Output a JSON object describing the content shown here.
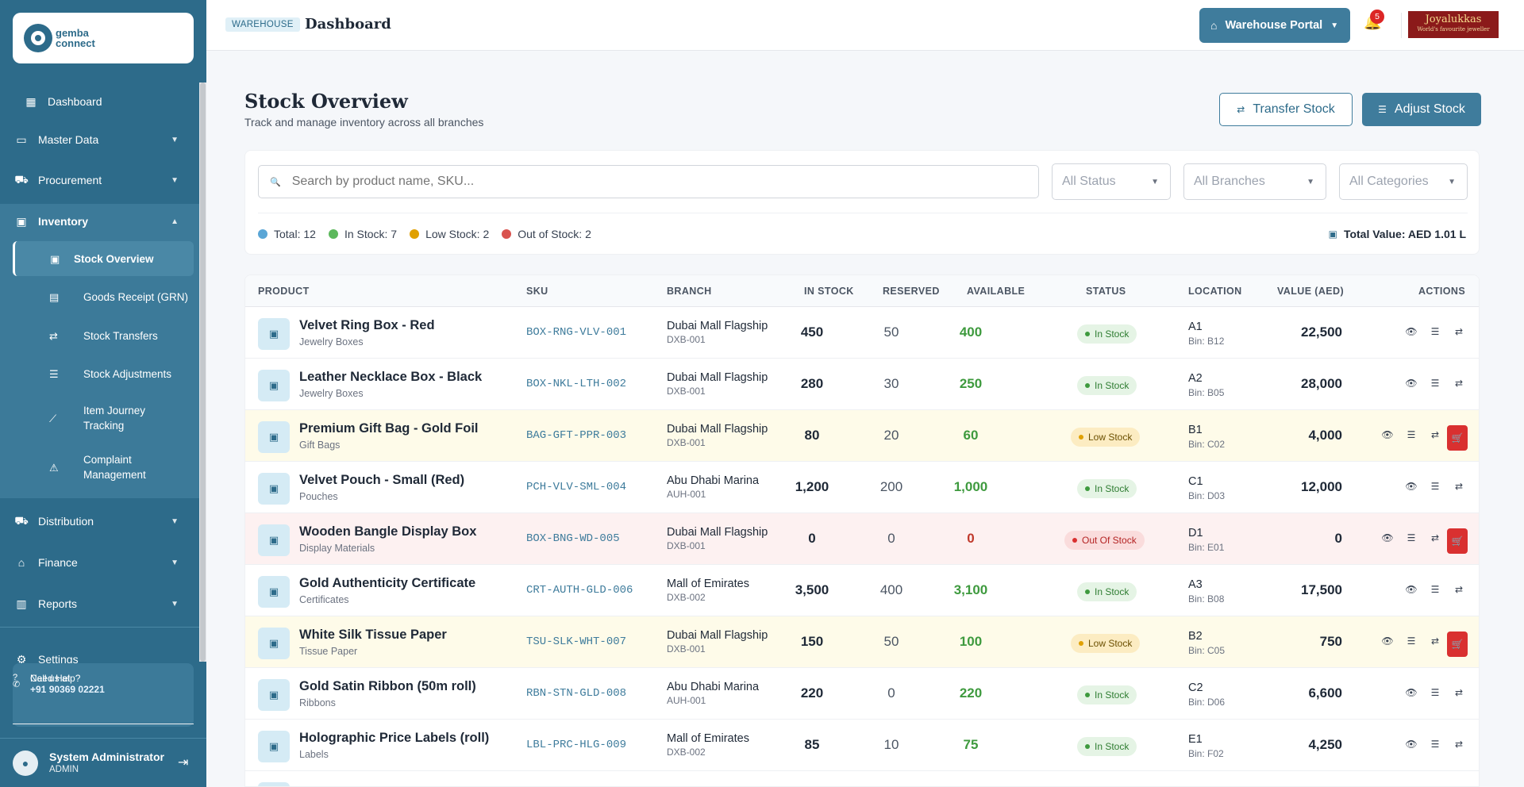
{
  "sidebar": {
    "logo_line1": "gemba",
    "logo_line2": "connect",
    "items": [
      {
        "label": "Dashboard"
      },
      {
        "label": "Master Data"
      },
      {
        "label": "Procurement"
      },
      {
        "label": "Inventory"
      },
      {
        "label": "Distribution"
      },
      {
        "label": "Finance"
      },
      {
        "label": "Reports"
      },
      {
        "label": "Settings"
      }
    ],
    "inventory_sub": [
      {
        "label": "Stock Overview"
      },
      {
        "label": "Goods Receipt (GRN)"
      },
      {
        "label": "Stock Transfers"
      },
      {
        "label": "Stock Adjustments"
      },
      {
        "label": "Item Journey Tracking"
      },
      {
        "label": "Complaint Management"
      }
    ],
    "help": {
      "title": "Need Help?",
      "call_label": "Call us at",
      "phone": "+91 90369 02221"
    },
    "user": {
      "name": "System Administrator",
      "role": "ADMIN"
    }
  },
  "topbar": {
    "badge": "WAREHOUSE",
    "title": "Dashboard",
    "portal_label": "Warehouse Portal",
    "notification_count": "5",
    "brand_line1": "Joyalukkas",
    "brand_line2": "World's favourite jeweller"
  },
  "page": {
    "title": "Stock Overview",
    "subtitle": "Track and manage inventory across all branches",
    "transfer_label": "Transfer Stock",
    "adjust_label": "Adjust Stock"
  },
  "filters": {
    "search_placeholder": "Search by product name, SKU...",
    "status": "All Status",
    "branches": "All Branches",
    "categories": "All Categories"
  },
  "stats": {
    "total": "Total: 12",
    "in_stock": "In Stock: 7",
    "low_stock": "Low Stock: 2",
    "out_of_stock": "Out of Stock: 2",
    "total_value": "Total Value: AED 1.01 L",
    "colors": {
      "total": "#5aa6d6",
      "in": "#5cb85c",
      "low": "#e0a000",
      "out": "#d9534f"
    }
  },
  "table": {
    "headers": {
      "product": "PRODUCT",
      "sku": "SKU",
      "branch": "BRANCH",
      "in_stock": "IN STOCK",
      "reserved": "RESERVED",
      "available": "AVAILABLE",
      "status": "STATUS",
      "location": "LOCATION",
      "value": "VALUE (AED)",
      "actions": "ACTIONS"
    },
    "rows": [
      {
        "name": "Velvet Ring Box - Red",
        "category": "Jewelry Boxes",
        "sku": "BOX-RNG-VLV-001",
        "branch": "Dubai Mall Flagship",
        "branch_code": "DXB-001",
        "in_stock": "450",
        "reserved": "50",
        "available": "400",
        "status": "In Stock",
        "location": "A1",
        "bin": "Bin: B12",
        "value": "22,500"
      },
      {
        "name": "Leather Necklace Box - Black",
        "category": "Jewelry Boxes",
        "sku": "BOX-NKL-LTH-002",
        "branch": "Dubai Mall Flagship",
        "branch_code": "DXB-001",
        "in_stock": "280",
        "reserved": "30",
        "available": "250",
        "status": "In Stock",
        "location": "A2",
        "bin": "Bin: B05",
        "value": "28,000"
      },
      {
        "name": "Premium Gift Bag - Gold Foil",
        "category": "Gift Bags",
        "sku": "BAG-GFT-PPR-003",
        "branch": "Dubai Mall Flagship",
        "branch_code": "DXB-001",
        "in_stock": "80",
        "reserved": "20",
        "available": "60",
        "status": "Low Stock",
        "location": "B1",
        "bin": "Bin: C02",
        "value": "4,000"
      },
      {
        "name": "Velvet Pouch - Small (Red)",
        "category": "Pouches",
        "sku": "PCH-VLV-SML-004",
        "branch": "Abu Dhabi Marina",
        "branch_code": "AUH-001",
        "in_stock": "1,200",
        "reserved": "200",
        "available": "1,000",
        "status": "In Stock",
        "location": "C1",
        "bin": "Bin: D03",
        "value": "12,000"
      },
      {
        "name": "Wooden Bangle Display Box",
        "category": "Display Materials",
        "sku": "BOX-BNG-WD-005",
        "branch": "Dubai Mall Flagship",
        "branch_code": "DXB-001",
        "in_stock": "0",
        "reserved": "0",
        "available": "0",
        "status": "Out Of Stock",
        "location": "D1",
        "bin": "Bin: E01",
        "value": "0"
      },
      {
        "name": "Gold Authenticity Certificate",
        "category": "Certificates",
        "sku": "CRT-AUTH-GLD-006",
        "branch": "Mall of Emirates",
        "branch_code": "DXB-002",
        "in_stock": "3,500",
        "reserved": "400",
        "available": "3,100",
        "status": "In Stock",
        "location": "A3",
        "bin": "Bin: B08",
        "value": "17,500"
      },
      {
        "name": "White Silk Tissue Paper",
        "category": "Tissue Paper",
        "sku": "TSU-SLK-WHT-007",
        "branch": "Dubai Mall Flagship",
        "branch_code": "DXB-001",
        "in_stock": "150",
        "reserved": "50",
        "available": "100",
        "status": "Low Stock",
        "location": "B2",
        "bin": "Bin: C05",
        "value": "750"
      },
      {
        "name": "Gold Satin Ribbon (50m roll)",
        "category": "Ribbons",
        "sku": "RBN-STN-GLD-008",
        "branch": "Abu Dhabi Marina",
        "branch_code": "AUH-001",
        "in_stock": "220",
        "reserved": "0",
        "available": "220",
        "status": "In Stock",
        "location": "C2",
        "bin": "Bin: D06",
        "value": "6,600"
      },
      {
        "name": "Holographic Price Labels (roll)",
        "category": "Labels",
        "sku": "LBL-PRC-HLG-009",
        "branch": "Mall of Emirates",
        "branch_code": "DXB-002",
        "in_stock": "85",
        "reserved": "10",
        "available": "75",
        "status": "In Stock",
        "location": "E1",
        "bin": "Bin: F02",
        "value": "4,250"
      }
    ]
  }
}
